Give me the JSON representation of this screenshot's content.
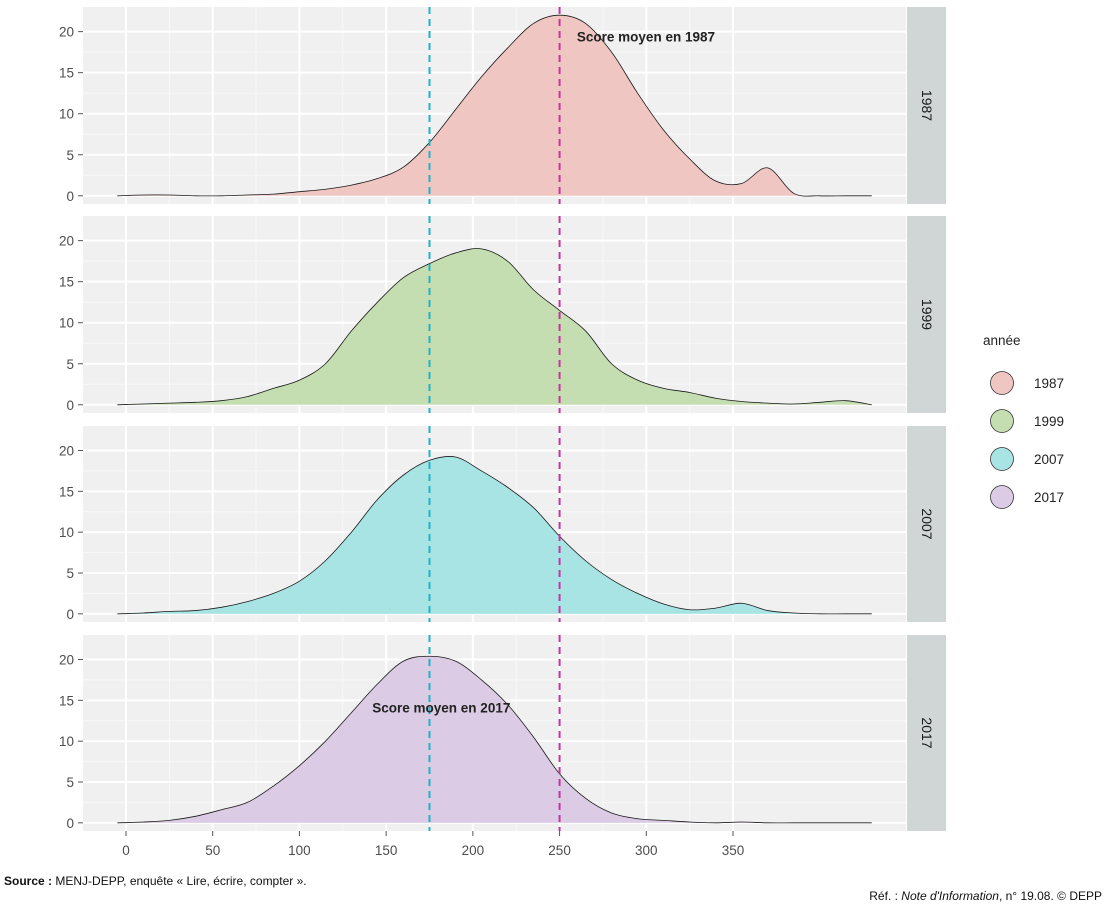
{
  "chart_data": {
    "type": "area",
    "subtype": "faceted-density",
    "x_ticks": [
      0,
      50,
      100,
      150,
      200,
      250,
      300,
      350
    ],
    "x_range": [
      -5,
      430
    ],
    "y_ticks": [
      0,
      5,
      10,
      15,
      20
    ],
    "y_range": [
      -1,
      23
    ],
    "x": [
      -5,
      10,
      25,
      40,
      55,
      70,
      85,
      100,
      115,
      130,
      145,
      160,
      175,
      190,
      205,
      220,
      235,
      250,
      265,
      280,
      295,
      310,
      325,
      340,
      355,
      370,
      385,
      400,
      415,
      430
    ],
    "series": [
      {
        "name": "1987",
        "strip_label": "1987",
        "color": "#f0c6c3",
        "values": [
          0,
          0.1,
          0.1,
          0,
          0,
          0.1,
          0.2,
          0.5,
          0.8,
          1.3,
          2.1,
          3.5,
          6.5,
          10.5,
          14.5,
          18.0,
          21.0,
          22.0,
          21.0,
          17.5,
          12.5,
          8.0,
          4.5,
          1.8,
          1.5,
          3.4,
          0.3,
          0,
          0,
          0
        ]
      },
      {
        "name": "1999",
        "strip_label": "1999",
        "color": "#c5deb1",
        "values": [
          0,
          0.1,
          0.2,
          0.3,
          0.5,
          1.0,
          2.0,
          3.0,
          5.0,
          9.0,
          12.5,
          15.5,
          17.2,
          18.5,
          19.0,
          17.5,
          14.0,
          11.5,
          9.0,
          5.0,
          3.0,
          2.0,
          1.5,
          0.8,
          0.4,
          0.2,
          0.1,
          0.3,
          0.5,
          0
        ]
      },
      {
        "name": "2007",
        "strip_label": "2007",
        "color": "#a9e4e5",
        "values": [
          0,
          0.1,
          0.3,
          0.4,
          0.8,
          1.5,
          2.5,
          4.0,
          6.5,
          10.0,
          14.0,
          17.0,
          18.8,
          19.2,
          17.5,
          15.5,
          13.0,
          9.5,
          6.5,
          4.2,
          2.5,
          1.2,
          0.5,
          0.7,
          1.3,
          0.4,
          0.1,
          0,
          0,
          0
        ]
      },
      {
        "name": "2017",
        "strip_label": "2017",
        "color": "#dbcbe5",
        "values": [
          0,
          0.1,
          0.3,
          0.8,
          1.6,
          2.5,
          4.5,
          7.0,
          10.0,
          13.5,
          17.0,
          19.8,
          20.4,
          19.8,
          17.5,
          14.5,
          10.5,
          6.0,
          3.0,
          1.2,
          0.5,
          0.3,
          0.1,
          0,
          0.1,
          0,
          0,
          0,
          0,
          0
        ]
      }
    ],
    "reference_lines": [
      {
        "x": 175,
        "color": "#1fb2c9"
      },
      {
        "x": 250,
        "color": "#c2379e"
      }
    ],
    "annotations": [
      {
        "panel": 0,
        "text": "Score moyen en 1987",
        "x": 260,
        "y": 18.8
      },
      {
        "panel": 3,
        "text": "Score moyen en 2017",
        "x": 142,
        "y": 13.5
      }
    ],
    "legend": {
      "title": "année",
      "position": "right",
      "entries": [
        "1987",
        "1999",
        "2007",
        "2017"
      ]
    },
    "xlabel": "",
    "ylabel": ""
  },
  "footer": {
    "source_label": "Source :",
    "source_text": "MENJ-DEPP, enquête « Lire, écrire, compter ».",
    "ref_prefix": "Réf. : ",
    "ref_italic": "Note d'Information",
    "ref_suffix": ", n° 19.08. © DEPP"
  }
}
